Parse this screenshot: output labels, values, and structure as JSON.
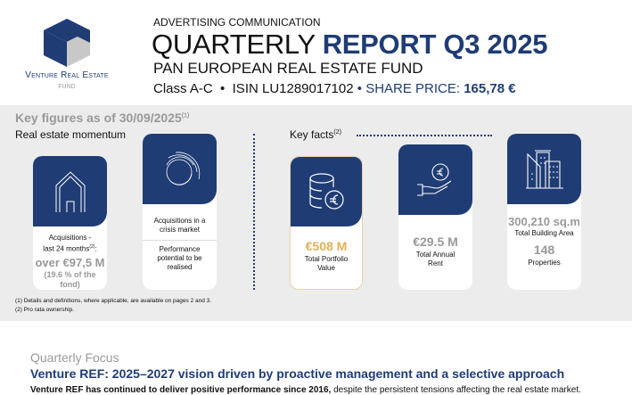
{
  "logo": {
    "name": "Venture Real Estate",
    "sub": "FUND"
  },
  "header": {
    "tag": "ADVERTISING COMMUNICATION",
    "title_light": "QUARTERLY",
    "title_bold": "REPORT Q3 2025",
    "subtitle": "PAN EUROPEAN REAL ESTATE FUND",
    "class": "Class A-C",
    "sep": "•",
    "isin": "ISIN LU1289017102",
    "share_label": "SHARE PRICE:",
    "share_price": "165,78 €"
  },
  "key_figures": {
    "title": "Key figures as of 30/09/2025",
    "title_sup": "(1)",
    "momentum_title": "Real estate momentum",
    "facts_title": "Key facts",
    "facts_sup": "(2)"
  },
  "cards": [
    {
      "icon": "house-icon",
      "line1": "Acquisitions -",
      "line2": "last 24 months",
      "sup": "(2)",
      "line2b": ":",
      "value": "over €97,5 M",
      "note": "(19.6 % of the fond)"
    },
    {
      "icon": "circles-icon",
      "line1": "Acquisitions in a crisis market",
      "line2": "Performance potential to be realised"
    },
    {
      "icon": "coins-euro-icon",
      "value": "€508 M",
      "label": "Total Portfolio Value"
    },
    {
      "icon": "hand-euro-icon",
      "value": "€29.5 M",
      "label": "Total Annual Rent"
    },
    {
      "icon": "buildings-icon",
      "value": "300,210 sq.m",
      "label": "Total Building Area",
      "value2": "148",
      "label2": "Properties"
    }
  ],
  "footnotes": [
    "(1) Details and definitions, where applicable, are available on pages 2 and 3.",
    "(2) Pro rata ownership."
  ],
  "focus": {
    "title": "Quarterly Focus",
    "headline": "Venture REF: 2025–2027 vision driven by proactive management and a selective approach",
    "body_bold": "Venture REF has continued to deliver positive performance since 2016,",
    "body": " despite the persistent tensions affecting the real estate market."
  },
  "colors": {
    "brand": "#1f3c74",
    "accent": "#e0b055",
    "panel": "#ececec"
  }
}
